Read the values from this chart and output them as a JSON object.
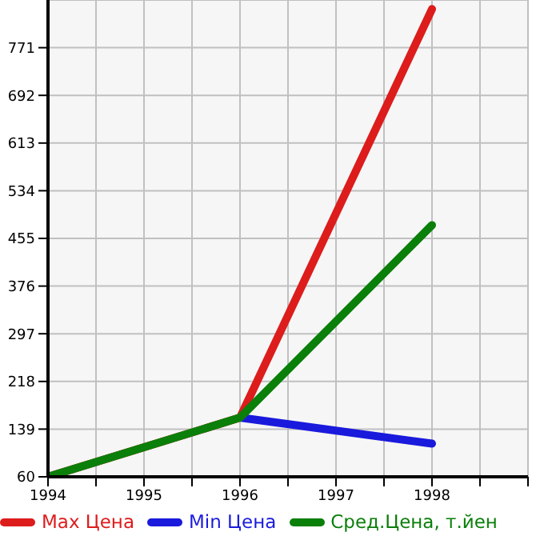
{
  "chart_data": {
    "type": "line",
    "x": [
      1994,
      1996,
      1998
    ],
    "series": [
      {
        "name": "Max Цена",
        "color": "#dd1c1c",
        "values": [
          60,
          158,
          835
        ]
      },
      {
        "name": "Min Цена",
        "color": "#1a1adc",
        "values": [
          null,
          158,
          115
        ]
      },
      {
        "name": "Сред.Цена, т.йен",
        "color": "#0a7f0a",
        "values": [
          60,
          158,
          477
        ]
      }
    ],
    "xlim": [
      1994,
      1999
    ],
    "xticks": [
      1994,
      {
        "value": 1994.5,
        "label": null
      },
      1995,
      {
        "value": 1995.5,
        "label": null
      },
      1996,
      {
        "value": 1996.5,
        "label": null
      },
      1997,
      {
        "value": 1997.5,
        "label": null
      },
      1998,
      {
        "value": 1998.5,
        "label": null
      },
      {
        "value": 1999,
        "label": null
      }
    ],
    "ylim": [
      60,
      850
    ],
    "yticks": [
      60,
      139,
      218,
      297,
      376,
      455,
      534,
      613,
      692,
      771
    ],
    "grid": true,
    "legend": "bottom",
    "marker": "none",
    "line_style": "solid"
  }
}
